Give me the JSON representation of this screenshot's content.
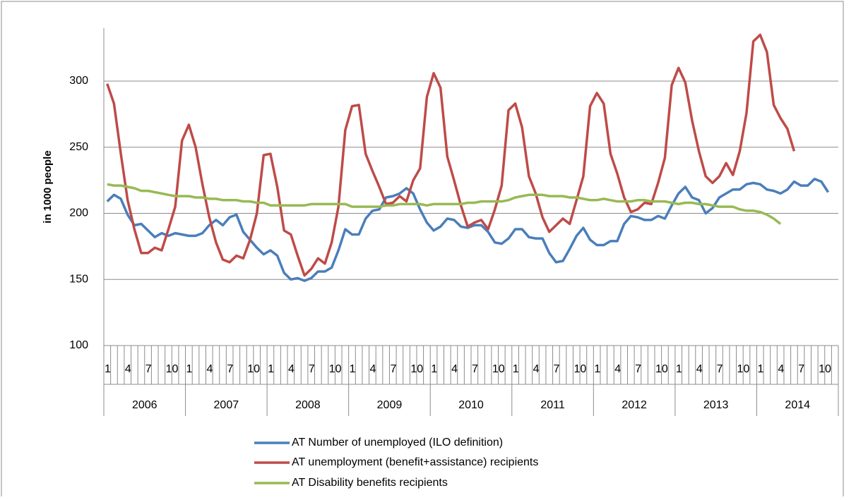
{
  "chart_data": {
    "type": "line",
    "y_label": "in 1000 people",
    "categories": [
      "1",
      null,
      null,
      "4",
      null,
      null,
      "7",
      null,
      null,
      "10",
      null,
      null,
      "1",
      null,
      null,
      "4",
      null,
      null,
      "7",
      null,
      null,
      "10",
      null,
      null,
      "1",
      null,
      null,
      "4",
      null,
      null,
      "7",
      null,
      null,
      "10",
      null,
      null,
      "1",
      null,
      null,
      "4",
      null,
      null,
      "7",
      null,
      null,
      "10",
      null,
      null,
      "1",
      null,
      null,
      "4",
      null,
      null,
      "7",
      null,
      null,
      "10",
      null,
      null,
      "1",
      null,
      null,
      "4",
      null,
      null,
      "7",
      null,
      null,
      "10",
      null,
      null,
      "1",
      null,
      null,
      "4",
      null,
      null,
      "7",
      null,
      null,
      "10",
      null,
      null,
      "1",
      null,
      null,
      "4",
      null,
      null,
      "7",
      null,
      null,
      "10",
      null,
      null,
      "1",
      null,
      null,
      "4",
      null,
      null,
      "7",
      null,
      null,
      "10",
      null,
      null
    ],
    "years": [
      "2006",
      "2007",
      "2008",
      "2009",
      "2010",
      "2011",
      "2012",
      "2013",
      "2014"
    ],
    "ylim": [
      100,
      340
    ],
    "yticks": [
      100,
      150,
      200,
      250,
      300
    ],
    "grid": true,
    "legend": "bottom",
    "series": [
      {
        "name": "AT Number of unemployed (ILO definition)",
        "color": "#4a7ebb",
        "values": [
          209,
          214,
          211,
          199,
          191,
          192,
          187,
          182,
          185,
          183,
          185,
          184,
          183,
          183,
          185,
          191,
          195,
          191,
          197,
          199,
          186,
          180,
          174,
          169,
          172,
          168,
          155,
          150,
          151,
          149,
          151,
          156,
          156,
          159,
          172,
          188,
          184,
          184,
          196,
          202,
          203,
          212,
          213,
          215,
          219,
          215,
          203,
          193,
          187,
          190,
          196,
          195,
          190,
          189,
          191,
          191,
          186,
          178,
          177,
          181,
          188,
          188,
          182,
          181,
          181,
          170,
          163,
          164,
          173,
          183,
          189,
          180,
          176,
          176,
          179,
          179,
          192,
          198,
          197,
          195,
          195,
          198,
          196,
          206,
          215,
          220,
          212,
          210,
          200,
          204,
          212,
          215,
          218,
          218,
          222,
          223,
          222,
          218,
          217,
          215,
          218,
          224,
          221,
          221,
          226,
          224,
          216,
          null
        ]
      },
      {
        "name": "AT unemployment (benefit+assistance) recipients",
        "color": "#be4b48",
        "values": [
          298,
          283,
          245,
          210,
          188,
          170,
          170,
          174,
          172,
          188,
          205,
          255,
          267,
          250,
          222,
          197,
          178,
          165,
          163,
          168,
          166,
          180,
          200,
          244,
          245,
          220,
          187,
          184,
          168,
          153,
          158,
          166,
          162,
          178,
          205,
          263,
          281,
          282,
          245,
          232,
          220,
          207,
          208,
          213,
          209,
          225,
          234,
          288,
          306,
          295,
          243,
          225,
          206,
          190,
          193,
          195,
          188,
          203,
          221,
          278,
          283,
          265,
          228,
          215,
          197,
          186,
          191,
          196,
          192,
          210,
          228,
          281,
          291,
          283,
          245,
          230,
          212,
          201,
          203,
          208,
          207,
          223,
          242,
          297,
          310,
          299,
          270,
          247,
          228,
          223,
          228,
          238,
          229,
          247,
          276,
          330,
          335,
          322,
          282,
          272,
          264,
          247,
          null,
          null,
          null,
          null,
          null,
          null
        ]
      },
      {
        "name": "AT Disability benefits recipients",
        "color": "#98b954",
        "values": [
          222,
          221,
          221,
          220,
          219,
          217,
          217,
          216,
          215,
          214,
          213,
          213,
          213,
          212,
          212,
          211,
          211,
          210,
          210,
          210,
          209,
          209,
          208,
          208,
          206,
          206,
          206,
          206,
          206,
          206,
          207,
          207,
          207,
          207,
          207,
          207,
          205,
          205,
          205,
          205,
          205,
          206,
          206,
          207,
          207,
          207,
          207,
          206,
          207,
          207,
          207,
          207,
          207,
          208,
          208,
          209,
          209,
          209,
          209,
          210,
          212,
          213,
          214,
          214,
          214,
          213,
          213,
          213,
          212,
          212,
          211,
          210,
          210,
          211,
          210,
          209,
          209,
          209,
          210,
          210,
          209,
          209,
          209,
          208,
          207,
          208,
          208,
          207,
          207,
          206,
          205,
          205,
          205,
          203,
          202,
          202,
          201,
          199,
          196,
          192,
          null,
          null,
          null,
          null,
          null,
          null,
          null,
          null
        ]
      }
    ]
  }
}
